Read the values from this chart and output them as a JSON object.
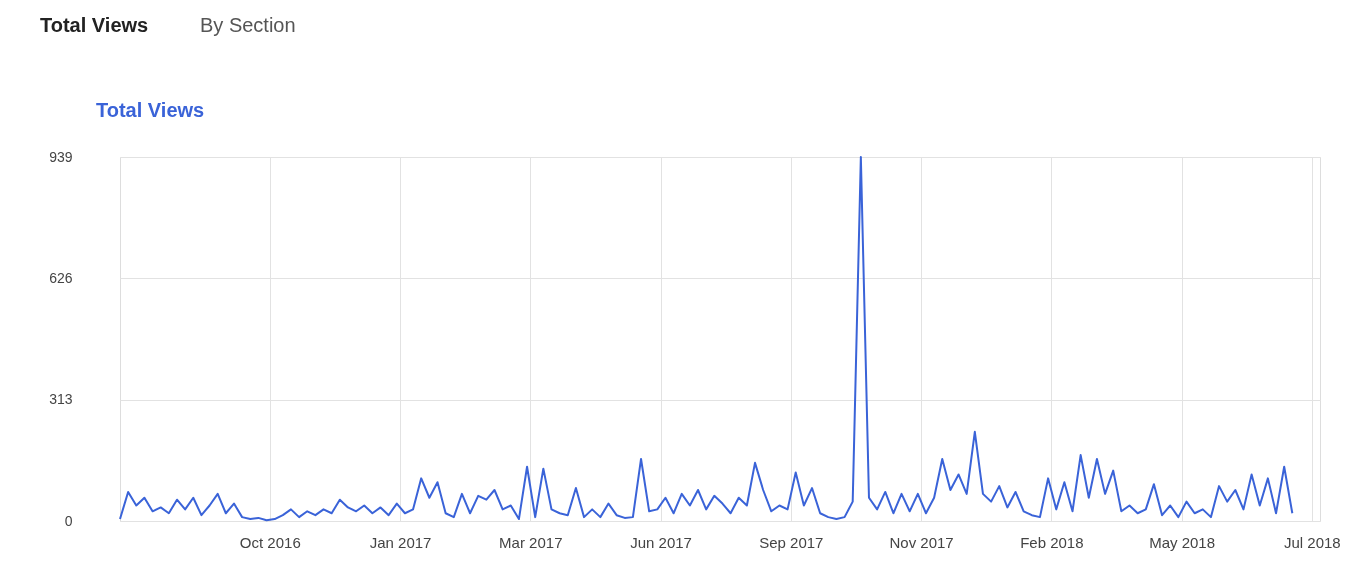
{
  "chart_data": {
    "type": "line",
    "title": "Total Views",
    "annotations": [
      "Total Views",
      "By Section"
    ],
    "x": [
      "2016-07-20",
      "2016-07-25",
      "2016-07-30",
      "2016-08-04",
      "2016-08-09",
      "2016-08-14",
      "2016-08-19",
      "2016-08-24",
      "2016-08-29",
      "2016-09-03",
      "2016-09-08",
      "2016-09-13",
      "2016-09-18",
      "2016-09-23",
      "2016-09-28",
      "2016-10-03",
      "2016-10-08",
      "2016-10-13",
      "2016-10-18",
      "2016-10-23",
      "2016-10-28",
      "2016-11-02",
      "2016-11-07",
      "2016-11-12",
      "2016-11-17",
      "2016-11-22",
      "2016-11-27",
      "2016-12-02",
      "2016-12-07",
      "2016-12-12",
      "2016-12-17",
      "2016-12-22",
      "2016-12-27",
      "2017-01-01",
      "2017-01-06",
      "2017-01-11",
      "2017-01-16",
      "2017-01-21",
      "2017-01-26",
      "2017-01-31",
      "2017-02-05",
      "2017-02-10",
      "2017-02-15",
      "2017-02-20",
      "2017-02-25",
      "2017-03-02",
      "2017-03-07",
      "2017-03-12",
      "2017-03-17",
      "2017-03-22",
      "2017-03-27",
      "2017-04-01",
      "2017-04-06",
      "2017-04-11",
      "2017-04-16",
      "2017-04-21",
      "2017-04-26",
      "2017-05-01",
      "2017-05-06",
      "2017-05-11",
      "2017-05-16",
      "2017-05-21",
      "2017-05-26",
      "2017-05-31",
      "2017-06-05",
      "2017-06-10",
      "2017-06-15",
      "2017-06-20",
      "2017-06-25",
      "2017-06-30",
      "2017-07-05",
      "2017-07-10",
      "2017-07-15",
      "2017-07-20",
      "2017-07-25",
      "2017-07-30",
      "2017-08-04",
      "2017-08-09",
      "2017-08-14",
      "2017-08-19",
      "2017-08-24",
      "2017-08-29",
      "2017-09-03",
      "2017-09-08",
      "2017-09-13",
      "2017-09-18",
      "2017-09-23",
      "2017-09-28",
      "2017-10-03",
      "2017-10-08",
      "2017-10-13",
      "2017-10-18",
      "2017-10-23",
      "2017-10-28",
      "2017-11-02",
      "2017-11-07",
      "2017-11-12",
      "2017-11-17",
      "2017-11-22",
      "2017-11-27",
      "2017-12-02",
      "2017-12-07",
      "2017-12-12",
      "2017-12-17",
      "2017-12-22",
      "2017-12-27",
      "2018-01-01",
      "2018-01-06",
      "2018-01-11",
      "2018-01-16",
      "2018-01-21",
      "2018-01-26",
      "2018-01-31",
      "2018-02-05",
      "2018-02-10",
      "2018-02-15",
      "2018-02-20",
      "2018-02-25",
      "2018-03-02",
      "2018-03-07",
      "2018-03-12",
      "2018-03-17",
      "2018-03-22",
      "2018-03-27",
      "2018-04-01",
      "2018-04-06",
      "2018-04-11",
      "2018-04-16",
      "2018-04-21",
      "2018-04-26",
      "2018-05-01",
      "2018-05-06",
      "2018-05-11",
      "2018-05-16",
      "2018-05-21",
      "2018-05-26",
      "2018-05-31",
      "2018-06-05",
      "2018-06-10",
      "2018-06-15",
      "2018-06-20",
      "2018-06-25",
      "2018-06-30",
      "2018-07-05",
      "2018-07-10"
    ],
    "series": [
      {
        "color": "#3a63d8",
        "values": [
          5,
          75,
          40,
          60,
          25,
          35,
          20,
          55,
          30,
          60,
          15,
          40,
          70,
          20,
          45,
          10,
          5,
          8,
          2,
          5,
          15,
          30,
          10,
          25,
          15,
          30,
          20,
          55,
          35,
          25,
          40,
          20,
          35,
          15,
          45,
          20,
          30,
          110,
          60,
          100,
          20,
          10,
          70,
          20,
          65,
          55,
          80,
          30,
          40,
          5,
          140,
          10,
          135,
          30,
          20,
          15,
          85,
          10,
          30,
          10,
          45,
          15,
          8,
          10,
          160,
          25,
          30,
          60,
          20,
          70,
          40,
          80,
          30,
          65,
          45,
          20,
          60,
          40,
          150,
          80,
          25,
          40,
          30,
          125,
          40,
          85,
          20,
          10,
          5,
          10,
          50,
          939,
          60,
          30,
          75,
          20,
          70,
          25,
          70,
          20,
          60,
          160,
          80,
          120,
          70,
          230,
          70,
          50,
          90,
          35,
          75,
          25,
          15,
          10,
          110,
          30,
          100,
          25,
          170,
          60,
          160,
          70,
          130,
          25,
          40,
          20,
          30,
          95,
          15,
          40,
          10,
          50,
          20,
          30,
          10,
          90,
          50,
          80,
          30,
          120,
          40,
          110,
          20,
          140,
          20
        ]
      }
    ],
    "xlim": [
      "2016-07-20",
      "2018-07-27"
    ],
    "xticks": [
      {
        "value": "2016-10-20",
        "label": "Oct 2016"
      },
      {
        "value": "2017-01-08",
        "label": "Jan 2017"
      },
      {
        "value": "2017-03-29",
        "label": "Mar 2017"
      },
      {
        "value": "2017-06-17",
        "label": "Jun 2017"
      },
      {
        "value": "2017-09-05",
        "label": "Sep 2017"
      },
      {
        "value": "2017-11-24",
        "label": "Nov 2017"
      },
      {
        "value": "2018-02-12",
        "label": "Feb 2018"
      },
      {
        "value": "2018-05-03",
        "label": "May 2018"
      },
      {
        "value": "2018-07-22",
        "label": "Jul 2018"
      }
    ],
    "ylim": [
      0,
      939
    ],
    "yticks": [
      0,
      313,
      626,
      939
    ],
    "grid": true,
    "marker": "none",
    "line_style": "solid"
  }
}
